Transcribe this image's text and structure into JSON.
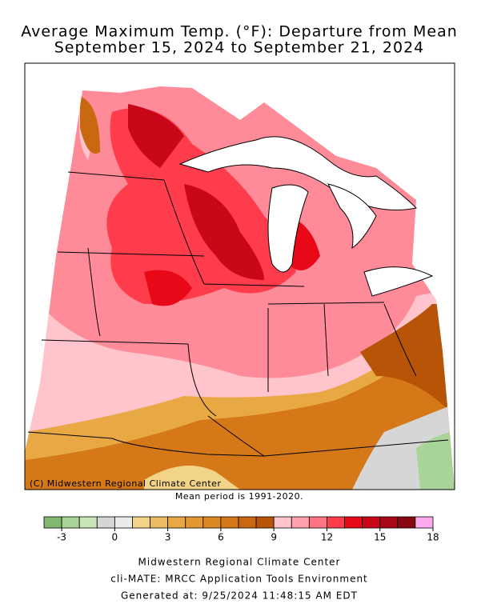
{
  "header": {
    "title": [
      "Average Maximum Temp. (°F): Departure from Mean",
      "September 15, 2024 to September 21, 2024"
    ]
  },
  "map": {
    "credit": "(C) Midwestern Regional Climate Center",
    "note": "Mean period is 1991-2020."
  },
  "legend": {
    "min": -4,
    "max": 18,
    "colors": [
      "#80b870",
      "#a8d498",
      "#c8e6b8",
      "#d6d6d6",
      "#ebebeb",
      "#f2d488",
      "#ecbc64",
      "#e8a844",
      "#e49834",
      "#dc8824",
      "#d47818",
      "#c86810",
      "#b85408",
      "#ffc4cc",
      "#ffa0ac",
      "#ff7484",
      "#ff3c4c",
      "#e80818",
      "#c80818",
      "#a80816",
      "#880812",
      "#ffaaee"
    ],
    "ticks": [
      -3,
      0,
      3,
      6,
      9,
      12,
      15,
      18
    ]
  },
  "footer": [
    "Midwestern Regional Climate Center",
    "cli-MATE: MRCC Application Tools Environment",
    "Generated at: 9/25/2024 11:48:15 AM EDT"
  ]
}
